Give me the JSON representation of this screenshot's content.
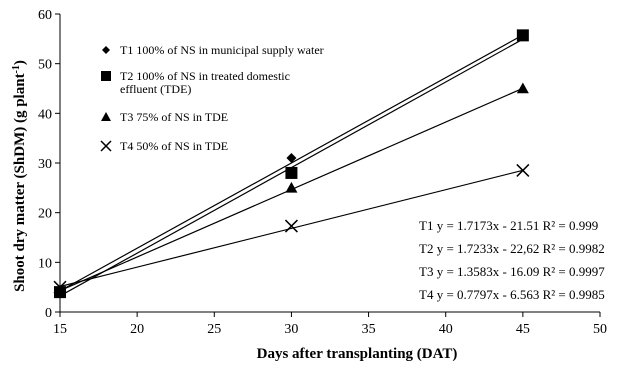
{
  "chart_data": {
    "type": "scatter",
    "xlabel": "Days after transplanting (DAT)",
    "ylabel": "Shoot dry matter (ShDM) (g plant",
    "ylabel_superscript": "-1",
    "ylabel_suffix": ")",
    "xlim": [
      15,
      50
    ],
    "ylim": [
      0,
      60
    ],
    "xticks": [
      "15",
      "20",
      "25",
      "30",
      "35",
      "40",
      "45",
      "50"
    ],
    "yticks": [
      "0",
      "10",
      "20",
      "30",
      "40",
      "50",
      "60"
    ],
    "legend_position": "top-left",
    "grid": false,
    "series": [
      {
        "name": "T1 100% of NS in municipal supply water",
        "marker": "diamond",
        "x": [
          15,
          30,
          45
        ],
        "y": [
          4.5,
          31,
          55.5
        ],
        "trendline": {
          "slope": 1.7173,
          "intercept": -21.51
        },
        "equation": "T1  y = 1.7173x - 21.51  R² = 0.999"
      },
      {
        "name": "T2 100% of NS in treated domestic effluent (TDE)",
        "name_lines": [
          "T2 100% of NS in treated domestic",
          "effluent (TDE)"
        ],
        "marker": "square",
        "x": [
          15,
          30,
          45
        ],
        "y": [
          4,
          28,
          55.7
        ],
        "trendline": {
          "slope": 1.7233,
          "intercept": -22.62
        },
        "equation": "T2  y = 1.7233x - 22,62  R² = 0.9982"
      },
      {
        "name": "T3 75% of NS in TDE",
        "marker": "triangle",
        "x": [
          15,
          30,
          45
        ],
        "y": [
          4.2,
          25,
          45
        ],
        "trendline": {
          "slope": 1.3583,
          "intercept": -16.09
        },
        "equation": "T3  y = 1.3583x - 16.09  R² = 0.9997"
      },
      {
        "name": "T4 50% of NS in TDE",
        "marker": "x",
        "x": [
          15,
          30,
          45
        ],
        "y": [
          5,
          17.3,
          28.5
        ],
        "trendline": {
          "slope": 0.7797,
          "intercept": -6.563
        },
        "equation": "T4  y = 0.7797x - 6.563  R² = 0.9985"
      }
    ]
  }
}
